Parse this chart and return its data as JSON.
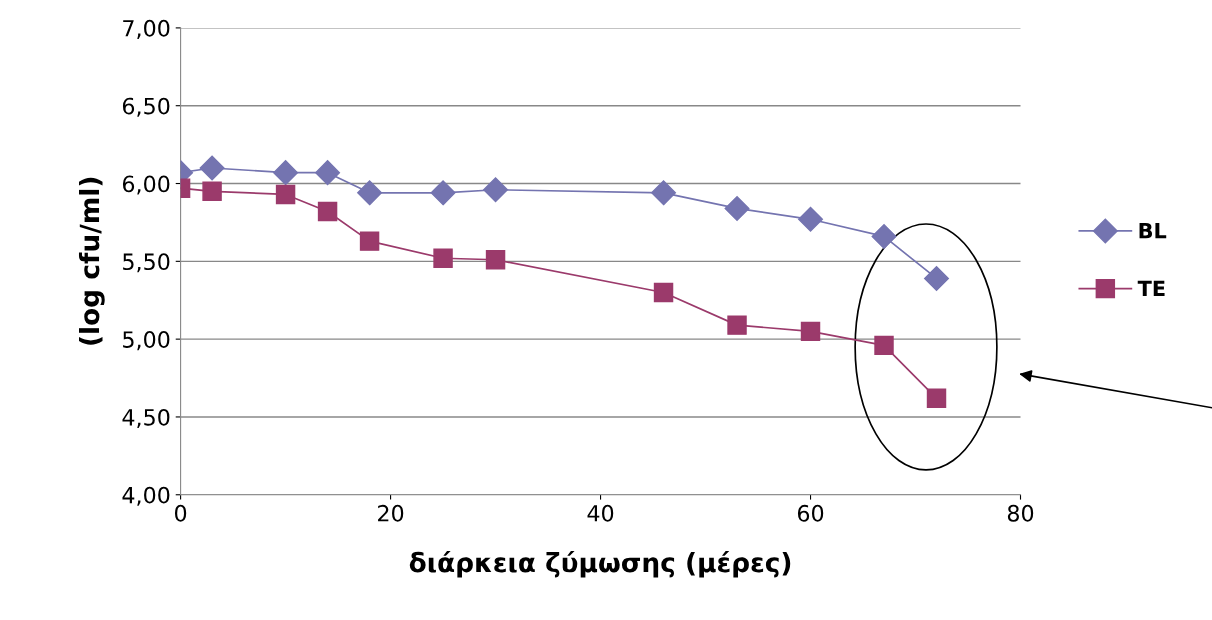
{
  "chart_data": {
    "type": "line",
    "xlabel": "διάρκεια ζύμωσης (μέρες)",
    "ylabel": "(log cfu/ml)",
    "x": [
      0,
      3,
      10,
      14,
      18,
      25,
      30,
      46,
      53,
      60,
      67,
      72
    ],
    "series": [
      {
        "name": "BL",
        "color": "#7474b0",
        "marker": "diamond",
        "values": [
          6.07,
          6.1,
          6.07,
          6.07,
          5.94,
          5.94,
          5.96,
          5.94,
          5.84,
          5.77,
          5.66,
          5.39
        ]
      },
      {
        "name": "TE",
        "color": "#9b3a6b",
        "marker": "square",
        "values": [
          5.97,
          5.95,
          5.93,
          5.82,
          5.63,
          5.52,
          5.51,
          5.3,
          5.09,
          5.05,
          4.96,
          4.62
        ]
      }
    ],
    "xlim": [
      0,
      80
    ],
    "xticks": [
      0,
      20,
      40,
      60,
      80
    ],
    "ylim": [
      4,
      7
    ],
    "yticks": [
      {
        "value": 4,
        "label": "4,00"
      },
      {
        "value": 4.5,
        "label": "4,50"
      },
      {
        "value": 5,
        "label": "5,00"
      },
      {
        "value": 5.5,
        "label": "5,50"
      },
      {
        "value": 6,
        "label": "6,00"
      },
      {
        "value": 6.5,
        "label": "6,50"
      },
      {
        "value": 7,
        "label": "7,00"
      }
    ],
    "grid": "y",
    "legend": "right",
    "line_style": "solid"
  }
}
